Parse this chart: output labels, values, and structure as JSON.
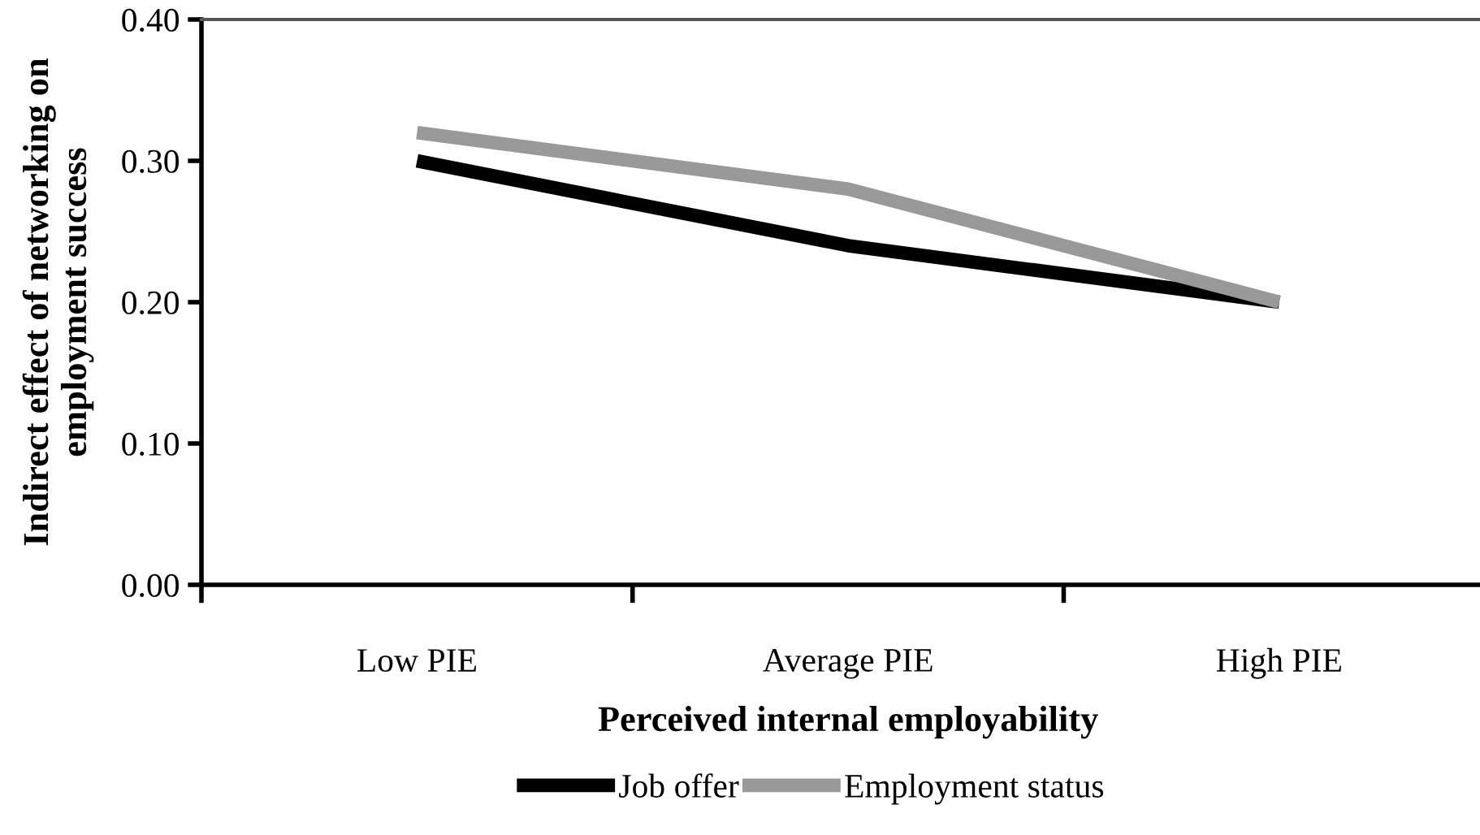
{
  "chart_data": {
    "type": "line",
    "xlabel": "Perceived internal employability",
    "ylabel": "Indirect effect of networking on\nemployment success",
    "categories": [
      "Low PIE",
      "Average PIE",
      "High PIE"
    ],
    "series": [
      {
        "name": "Job offer",
        "color": "#000000",
        "values": [
          0.3,
          0.24,
          0.2
        ]
      },
      {
        "name": "Employment status",
        "color": "#999999",
        "values": [
          0.32,
          0.28,
          0.2
        ]
      }
    ],
    "ylim": [
      0,
      0.4
    ],
    "yticks": [
      {
        "value": 0,
        "label": "0.00"
      },
      {
        "value": 0.1,
        "label": "0.10"
      },
      {
        "value": 0.2,
        "label": "0.20"
      },
      {
        "value": 0.3,
        "label": "0.30"
      },
      {
        "value": 0.4,
        "label": "0.40"
      }
    ],
    "grid": false,
    "legend": "bottom",
    "marker": "none",
    "line_style": "solid"
  }
}
